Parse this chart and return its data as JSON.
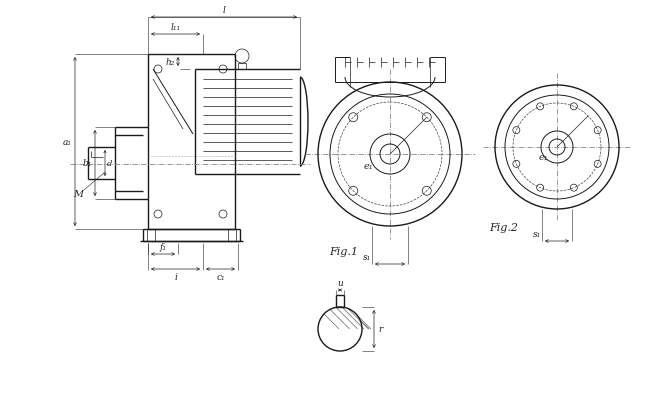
{
  "bg_color": "#ffffff",
  "line_color": "#1a1a1a",
  "dim_color": "#222222",
  "dashed_color": "#444444",
  "center_color": "#888888",
  "fig1_label": "Fig.1",
  "fig2_label": "Fig.2",
  "dim_labels": {
    "l": "l",
    "h2": "h₂",
    "l11": "l₁₁",
    "a1": "a₁",
    "b1": "b₁",
    "d": "d",
    "M": "M",
    "f1": "f₁",
    "i": "i",
    "c1": "c₁",
    "e1": "e₁",
    "s1": "s₁",
    "u": "u",
    "r": "r"
  }
}
